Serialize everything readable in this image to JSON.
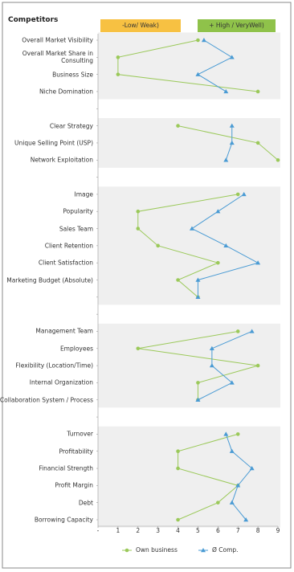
{
  "chart_data": {
    "type": "line",
    "orientation": "horizontal",
    "title": "Competitors",
    "annotations": [
      "-Low/ Weak)",
      "+ High / VeryWell)"
    ],
    "categories": [
      "Overall Market Visibility",
      "Overall Market Share in Consulting",
      "Business Size",
      "Niche Domination",
      null,
      "Clear Strategy",
      "Unique Selling Point (USP)",
      "Network Exploitation",
      null,
      "Image",
      "Popularity",
      "Sales Team",
      "Client Retention",
      "Client Satisfaction",
      "Marketing Budget (Absolute)",
      null,
      null,
      "Management Team",
      "Employees",
      "Flexibility (Location/Time)",
      "Internal Organization",
      "Collaboration System / Process",
      null,
      "Turnover",
      "Profitability",
      "Financial Strength",
      "Profit Margin",
      "Debt",
      "Borrowing Capacity"
    ],
    "series": [
      {
        "name": "Own business",
        "color": "#9bc95a",
        "marker": "circle",
        "values": [
          5,
          1,
          1,
          8,
          null,
          4,
          8,
          9,
          null,
          7,
          2,
          2,
          3,
          6,
          4,
          5,
          null,
          7,
          2,
          8,
          5,
          5,
          null,
          7,
          4,
          4,
          7,
          6,
          4
        ]
      },
      {
        "name": "Ø Comp.",
        "color": "#4a9bd4",
        "marker": "triangle",
        "values": [
          5.3,
          6.7,
          5,
          6.4,
          null,
          6.7,
          6.7,
          6.4,
          null,
          7.3,
          6,
          4.7,
          6.4,
          8,
          5,
          5,
          null,
          7.7,
          5.7,
          5.7,
          6.7,
          5,
          null,
          6.4,
          6.7,
          7.7,
          7,
          6.7,
          7.4
        ]
      }
    ],
    "xlim": [
      0,
      9
    ],
    "xticks": [
      {
        "value": 0,
        "label": "-"
      },
      1,
      2,
      3,
      4,
      5,
      6,
      7,
      8,
      9
    ]
  }
}
